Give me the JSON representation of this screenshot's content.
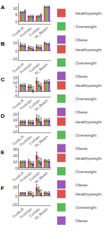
{
  "chart_data": [
    {
      "type": "bar",
      "title": "A",
      "categories": [
        "TrunkLift",
        "PushUps",
        "CurlUps",
        "Sit_Reach"
      ],
      "series": [
        {
          "name": "Healthyweight",
          "color": "#d9534f",
          "values": [
            7,
            4,
            4,
            11
          ],
          "errors": [
            0.5,
            0.5,
            0.5,
            0.5
          ]
        },
        {
          "name": "Overweight",
          "color": "#5cb85c",
          "values": [
            7,
            4,
            4,
            11
          ],
          "errors": [
            0.6,
            0.7,
            0.6,
            0.5
          ]
        },
        {
          "name": "Obese",
          "color": "#9b59b6",
          "values": [
            8,
            4,
            5,
            11
          ],
          "errors": [
            0.8,
            0.8,
            0.8,
            0.7
          ]
        }
      ],
      "ylim": [
        -2,
        14
      ],
      "yticks": [
        0,
        5,
        10
      ],
      "grid": false,
      "legend": "right"
    },
    {
      "type": "bar",
      "title": "B",
      "categories": [
        "TrunkLift",
        "PushUps",
        "CurlUps",
        "Sit_Reach"
      ],
      "series": [
        {
          "name": "Healthyweight",
          "color": "#d9534f",
          "values": [
            8,
            5,
            6,
            10
          ],
          "errors": [
            2.5,
            1.5,
            2.0,
            1.0
          ]
        },
        {
          "name": "Overweight",
          "color": "#5cb85c",
          "values": [
            7,
            4,
            5,
            9
          ],
          "errors": [
            1.5,
            1.5,
            1.8,
            1.0
          ]
        },
        {
          "name": "Obese",
          "color": "#9b59b6",
          "values": [
            7,
            3,
            5,
            9
          ],
          "errors": [
            1.8,
            2.0,
            2.0,
            1.2
          ]
        }
      ],
      "ylim": [
        -12,
        15
      ],
      "yticks": [
        -10,
        0,
        10
      ],
      "grid": false,
      "legend": "right"
    },
    {
      "type": "bar",
      "title": "C",
      "categories": [
        "TrunkLift",
        "PushUps",
        "CurlUps",
        "Sit_Reach"
      ],
      "series": [
        {
          "name": "Healthyweight",
          "color": "#d9534f",
          "values": [
            7,
            6,
            12,
            11
          ],
          "errors": [
            1.0,
            1.5,
            3.0,
            1.5
          ]
        },
        {
          "name": "Overweight",
          "color": "#5cb85c",
          "values": [
            7,
            6,
            8,
            11
          ],
          "errors": [
            1.2,
            1.5,
            2.5,
            1.5
          ]
        },
        {
          "name": "Obese",
          "color": "#9b59b6",
          "values": [
            7,
            2,
            6,
            11
          ],
          "errors": [
            1.5,
            3.5,
            3.0,
            2.0
          ]
        }
      ],
      "ylim": [
        -6,
        18
      ],
      "yticks": [
        -5,
        0,
        5,
        10,
        15
      ],
      "grid": false,
      "legend": "right"
    },
    {
      "type": "bar",
      "title": "D",
      "categories": [
        "TrunkLift",
        "PushUps",
        "CurlUps",
        "Sit_Reach"
      ],
      "series": [
        {
          "name": "Healthyweight",
          "color": "#d9534f",
          "values": [
            8,
            8,
            14,
            10
          ],
          "errors": [
            1.5,
            2.0,
            5.0,
            2.0
          ]
        },
        {
          "name": "Overweight",
          "color": "#5cb85c",
          "values": [
            8,
            7,
            12,
            10
          ],
          "errors": [
            1.5,
            2.5,
            5.5,
            2.0
          ]
        },
        {
          "name": "Obese",
          "color": "#9b59b6",
          "values": [
            8,
            7,
            8,
            10
          ],
          "errors": [
            2.0,
            3.0,
            6.0,
            2.5
          ]
        }
      ],
      "ylim": [
        -12,
        25
      ],
      "yticks": [
        -10,
        0,
        10,
        20
      ],
      "grid": false,
      "legend": "right"
    },
    {
      "type": "bar",
      "title": "E",
      "categories": [
        "TrunkLift",
        "PushUps",
        "CurlUps",
        "Sit_Reach"
      ],
      "series": [
        {
          "name": "Healthyweight",
          "color": "#d9534f",
          "values": [
            10,
            11,
            20,
            12
          ],
          "errors": [
            1.0,
            2.5,
            5.0,
            1.5
          ]
        },
        {
          "name": "Overweight",
          "color": "#5cb85c",
          "values": [
            10,
            8,
            12,
            11
          ],
          "errors": [
            1.2,
            2.5,
            4.5,
            1.5
          ]
        },
        {
          "name": "Obese",
          "color": "#9b59b6",
          "values": [
            10,
            7,
            10,
            11
          ],
          "errors": [
            1.5,
            3.0,
            5.0,
            2.0
          ]
        }
      ],
      "ylim": [
        -2,
        32
      ],
      "yticks": [
        0,
        10,
        20,
        30
      ],
      "grid": false,
      "legend": "right"
    },
    {
      "type": "bar",
      "title": "F",
      "categories": [
        "TrunkLift",
        "PushUps",
        "CurlUps",
        "Sit_Reach"
      ],
      "series": [
        {
          "name": "Healthyweight",
          "color": "#d9534f",
          "values": [
            7,
            8,
            20,
            8
          ],
          "errors": [
            1.0,
            2.5,
            6.0,
            2.0
          ]
        },
        {
          "name": "Overweight",
          "color": "#5cb85c",
          "values": [
            7,
            7,
            15,
            7
          ],
          "errors": [
            1.2,
            3.0,
            5.5,
            2.0
          ]
        },
        {
          "name": "Obese",
          "color": "#9b59b6",
          "values": [
            7,
            2,
            7,
            7
          ],
          "errors": [
            1.5,
            5.0,
            7.0,
            2.5
          ]
        }
      ],
      "ylim": [
        -22,
        28
      ],
      "yticks": [
        -20,
        0,
        20
      ],
      "grid": false,
      "legend": "right"
    }
  ]
}
